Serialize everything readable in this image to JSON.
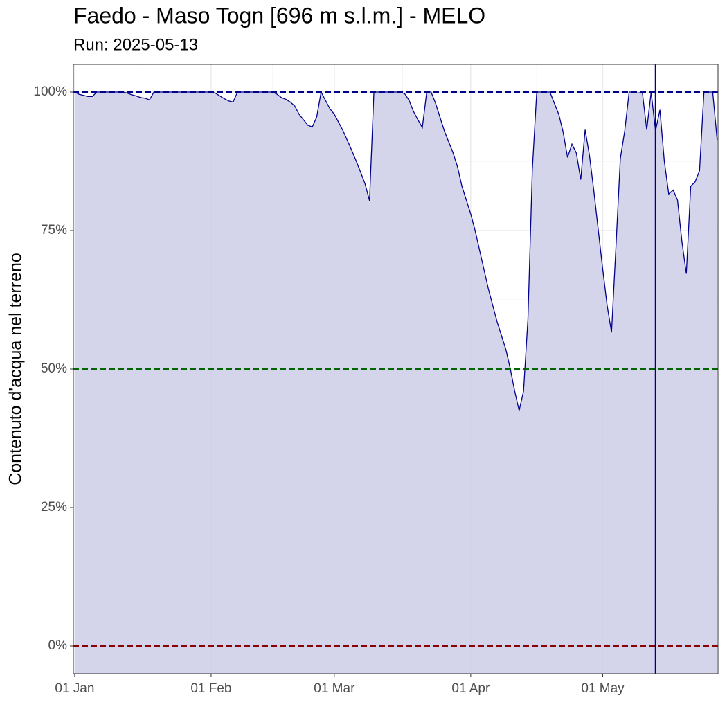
{
  "chart_data": {
    "type": "area",
    "title": "Faedo - Maso Togn [696 m s.l.m.] - MELO",
    "subtitle": "Run: 2025-05-13",
    "y_label": "Contenuto d'acqua nel terreno",
    "x": [
      0,
      1,
      2,
      3,
      4,
      5,
      6,
      7,
      8,
      9,
      10,
      11,
      12,
      13,
      14,
      15,
      16,
      17,
      18,
      19,
      20,
      21,
      22,
      23,
      24,
      25,
      26,
      27,
      28,
      29,
      30,
      31,
      32,
      33,
      34,
      35,
      36,
      37,
      38,
      39,
      40,
      41,
      42,
      43,
      44,
      45,
      46,
      47,
      48,
      49,
      50,
      51,
      52,
      53,
      54,
      55,
      56,
      57,
      58,
      59,
      60,
      61,
      62,
      63,
      64,
      65,
      66,
      67,
      68,
      69,
      70,
      71,
      72,
      73,
      74,
      75,
      76,
      77,
      78,
      79,
      80,
      81,
      82,
      83,
      84,
      85,
      86,
      87,
      88,
      89,
      90,
      91,
      92,
      93,
      94,
      95,
      96,
      97,
      98,
      99,
      100,
      101,
      102,
      103,
      104,
      105,
      106,
      107,
      108,
      109,
      110,
      111,
      112,
      113,
      114,
      115,
      116,
      117,
      118,
      119,
      120,
      121,
      122,
      123,
      124,
      125,
      126,
      127,
      128,
      129,
      130,
      131,
      132,
      133,
      134,
      135,
      136,
      137,
      138,
      139,
      140,
      141,
      142,
      143,
      144,
      145,
      146
    ],
    "values": [
      100,
      99.6,
      99.4,
      99.2,
      99.2,
      100,
      100,
      100,
      100,
      100,
      100,
      100,
      99.8,
      99.5,
      99.3,
      99,
      98.9,
      98.6,
      100,
      100,
      100,
      100,
      100,
      100,
      100,
      100,
      100,
      100,
      100,
      100,
      100,
      100,
      99.8,
      99.3,
      98.8,
      98.4,
      98.2,
      100,
      100,
      100,
      100,
      100,
      100,
      100,
      100,
      100,
      99.6,
      99,
      98.7,
      98.2,
      97.5,
      96,
      95,
      94,
      93.7,
      95.5,
      100,
      98.5,
      97,
      96,
      94.5,
      93,
      91.2,
      89.4,
      87.5,
      85.5,
      83.4,
      80.4,
      100,
      100,
      100,
      100,
      100,
      100,
      100,
      99.7,
      98.5,
      96.5,
      95,
      93.6,
      100,
      100,
      98,
      95.5,
      93,
      91,
      89,
      86.5,
      83,
      80.5,
      78,
      75,
      71.5,
      68,
      64.5,
      61.5,
      58.5,
      56,
      53.5,
      50,
      46,
      42.5,
      46,
      59,
      86,
      100,
      100,
      100,
      100,
      98,
      96,
      92.8,
      88.2,
      90.6,
      89,
      84.2,
      93.2,
      88.5,
      82,
      75,
      68,
      61.5,
      56.6,
      72,
      88,
      93,
      100,
      100,
      99.8,
      100,
      93.2,
      100,
      93,
      96.8,
      87.5,
      81.6,
      82.3,
      80.5,
      73,
      67.2,
      83,
      83.8,
      85.8,
      100,
      100,
      100,
      91.4
    ],
    "color": "#00008b",
    "fill": "#ccccE8",
    "xlim": [
      -0.3,
      146.2
    ],
    "xticks": [
      {
        "value": 0,
        "label": "01 Jan"
      },
      {
        "value": 31,
        "label": "01 Feb"
      },
      {
        "value": 59,
        "label": "01 Mar"
      },
      {
        "value": 90,
        "label": "01 Apr"
      },
      {
        "value": 120,
        "label": "01 May"
      }
    ],
    "ylim": [
      -5,
      105
    ],
    "yticks": [
      {
        "value": 0,
        "label": "0%"
      },
      {
        "value": 25,
        "label": "25%"
      },
      {
        "value": 50,
        "label": "50%"
      },
      {
        "value": 75,
        "label": "75%"
      },
      {
        "value": 100,
        "label": "100%"
      }
    ],
    "grid": true,
    "reference_lines": [
      {
        "value": 100,
        "color": "#00008b"
      },
      {
        "value": 50,
        "color": "#006400"
      },
      {
        "value": 0,
        "color": "#8b0000"
      }
    ],
    "vline": {
      "x": 132,
      "color": "#00008b"
    }
  }
}
